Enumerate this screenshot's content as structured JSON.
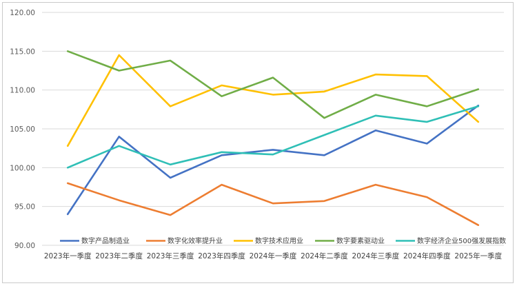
{
  "chart_data": {
    "type": "line",
    "title": "",
    "xlabel": "",
    "ylabel": "",
    "ylim": [
      90,
      120
    ],
    "yticks": [
      "90.00",
      "95.00",
      "100.00",
      "105.00",
      "110.00",
      "115.00",
      "120.00"
    ],
    "grid": true,
    "legend_position": "bottom",
    "categories": [
      "2023年一季度",
      "2023年二季度",
      "2023年三季度",
      "2023年四季度",
      "2024年一季度",
      "2024年二季度",
      "2024年三季度",
      "2024年四季度",
      "2025年一季度"
    ],
    "series": [
      {
        "name": "数字产品制造业",
        "color": "#4472c4",
        "values": [
          94.0,
          104.0,
          98.7,
          101.6,
          102.3,
          101.6,
          104.8,
          103.1,
          108.0
        ]
      },
      {
        "name": "数字化效率提升业",
        "color": "#ed7d31",
        "values": [
          98.0,
          95.8,
          93.9,
          97.8,
          95.4,
          95.7,
          97.8,
          96.2,
          92.6
        ]
      },
      {
        "name": "数字技术应用业",
        "color": "#ffc000",
        "values": [
          102.8,
          114.5,
          107.9,
          110.6,
          109.4,
          109.8,
          112.0,
          111.8,
          105.9
        ]
      },
      {
        "name": "数字要素驱动业",
        "color": "#70ad47",
        "values": [
          115.0,
          112.5,
          113.8,
          109.2,
          111.6,
          106.4,
          109.4,
          107.9,
          110.1
        ]
      },
      {
        "name": "数字经济企业500强发展指数",
        "color": "#2fbfb6",
        "values": [
          100.0,
          102.8,
          100.4,
          102.0,
          101.7,
          104.2,
          106.7,
          105.9,
          107.9
        ]
      }
    ]
  }
}
